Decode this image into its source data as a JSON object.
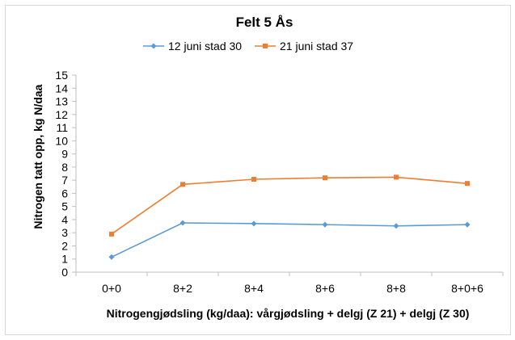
{
  "chart_data": {
    "type": "line",
    "title": "Felt 5 Ås",
    "xlabel": "Nitrogengjødsling (kg/daa): vårgjødsling + delgj (Z 21) + delgj (Z 30)",
    "ylabel": "Nitrogen tatt opp, kg N/daa",
    "categories": [
      "0+0",
      "8+2",
      "8+4",
      "8+6",
      "8+8",
      "8+0+6"
    ],
    "ylim": [
      0,
      15
    ],
    "yticks": [
      0,
      1,
      2,
      3,
      4,
      5,
      6,
      7,
      8,
      9,
      10,
      11,
      12,
      13,
      14,
      15
    ],
    "grid": false,
    "legend": "top",
    "series": [
      {
        "name": "12 juni stad 30",
        "color": "#5b9bd5",
        "marker": "diamond",
        "values": [
          1.15,
          3.75,
          3.7,
          3.62,
          3.52,
          3.62
        ]
      },
      {
        "name": "21 juni stad 37",
        "color": "#ed7d31",
        "marker": "square",
        "values": [
          2.9,
          6.68,
          7.07,
          7.18,
          7.23,
          6.75
        ]
      }
    ]
  }
}
